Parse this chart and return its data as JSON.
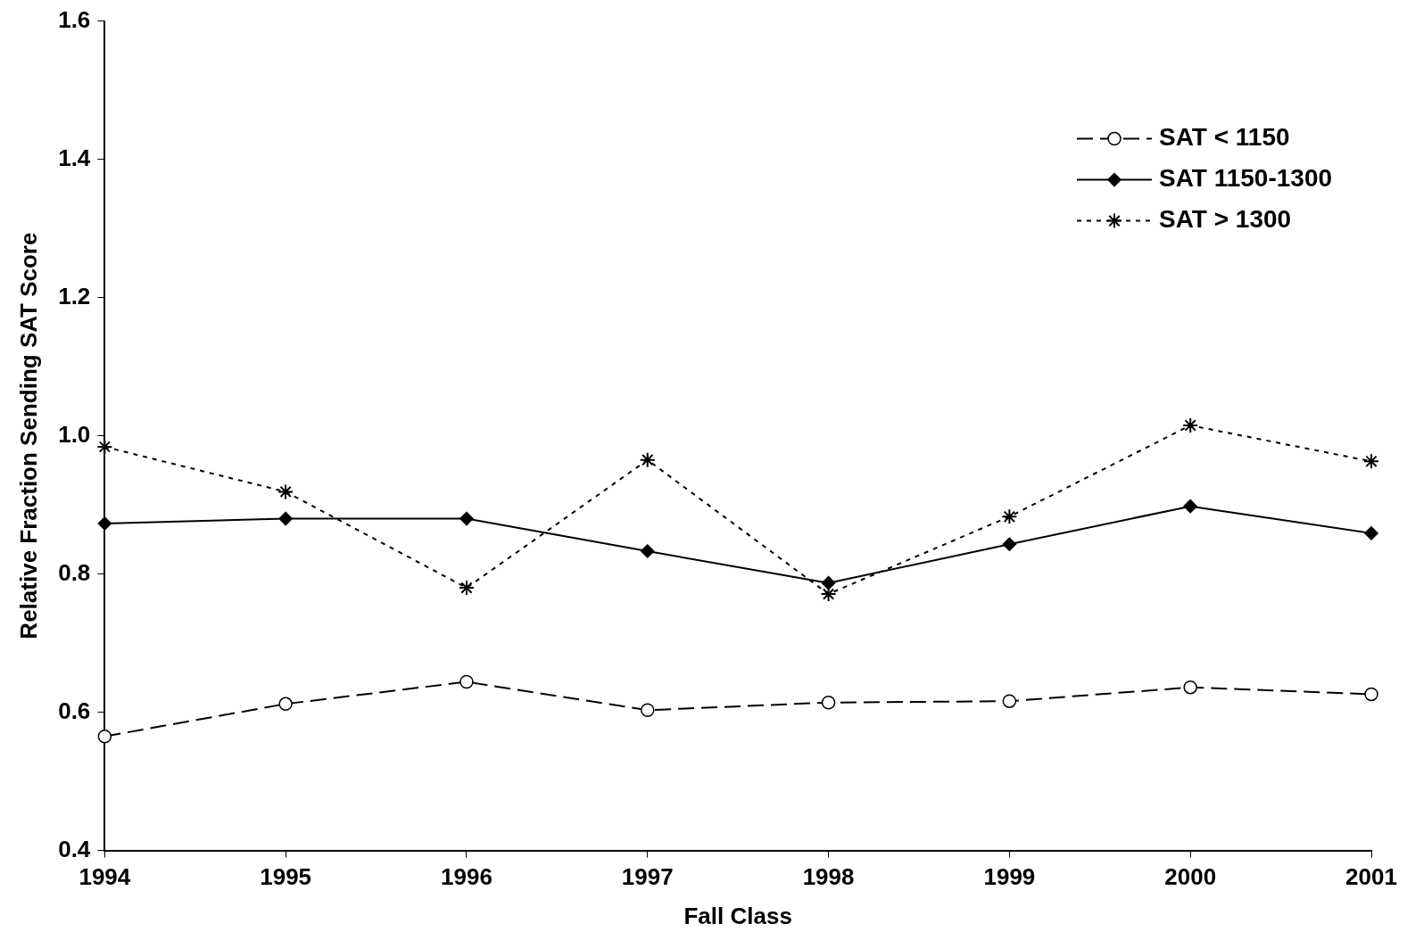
{
  "chart_data": {
    "type": "line",
    "xlabel": "Fall Class",
    "ylabel": "Relative Fraction Sending SAT Score",
    "categories": [
      "1994",
      "1995",
      "1996",
      "1997",
      "1998",
      "1999",
      "2000",
      "2001"
    ],
    "series": [
      {
        "name": "SAT < 1150",
        "color": "#000000",
        "marker": "circle",
        "line_style": "dashed",
        "values": [
          0.565,
          0.612,
          0.644,
          0.603,
          0.614,
          0.616,
          0.636,
          0.626
        ]
      },
      {
        "name": "SAT 1150-1300",
        "color": "#000000",
        "marker": "diamond",
        "line_style": "solid",
        "values": [
          0.873,
          0.88,
          0.88,
          0.833,
          0.787,
          0.843,
          0.898,
          0.859
        ]
      },
      {
        "name": "SAT > 1300",
        "color": "#000000",
        "marker": "cross",
        "line_style": "dotted",
        "values": [
          0.984,
          0.919,
          0.78,
          0.965,
          0.771,
          0.883,
          1.015,
          0.963
        ]
      }
    ],
    "ylim": [
      0.4,
      1.6
    ],
    "yticks": [
      {
        "value": 0.4,
        "label": "0.4"
      },
      {
        "value": 0.6,
        "label": "0.6"
      },
      {
        "value": 0.8,
        "label": "0.8"
      },
      {
        "value": 1.0,
        "label": "1.0"
      },
      {
        "value": 1.2,
        "label": "1.2"
      },
      {
        "value": 1.4,
        "label": "1.4"
      },
      {
        "value": 1.6,
        "label": "1.6"
      }
    ],
    "grid": false,
    "legend": "top right"
  }
}
